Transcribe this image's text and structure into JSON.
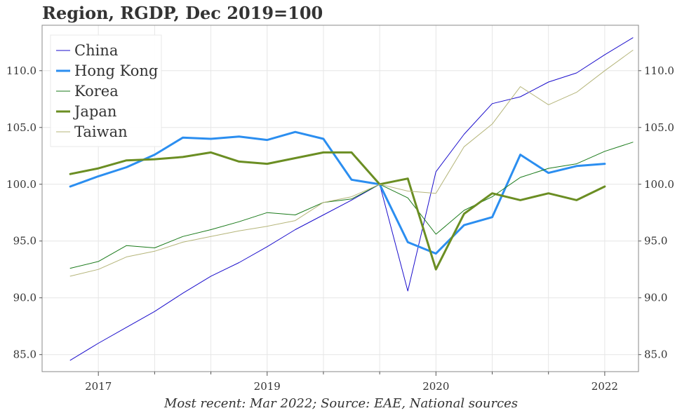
{
  "chart_data": {
    "type": "line",
    "title": "Region, RGDP, Dec 2019=100",
    "caption": "Most recent: Mar 2022; Source: EAE, National sources",
    "xlabel": "",
    "ylabel": "",
    "x_tick_labels": [
      "2017",
      "2019",
      "2020",
      "2022"
    ],
    "y_ticks": [
      85.0,
      90.0,
      95.0,
      100.0,
      105.0,
      110.0
    ],
    "y_tick_labels": [
      "85.0",
      "90.0",
      "95.0",
      "100.0",
      "105.0",
      "110.0"
    ],
    "ylim": [
      83.5,
      114
    ],
    "x_range": [
      -1.0,
      20.2
    ],
    "grid": true,
    "legend_position": "top-left",
    "series": [
      {
        "name": "China",
        "color": "#1a0dcc",
        "width": 1,
        "values": [
          84.5,
          86.0,
          87.4,
          88.8,
          90.4,
          91.9,
          93.1,
          94.5,
          96.0,
          97.3,
          98.6,
          100.0,
          90.6,
          101.1,
          104.4,
          107.1,
          107.7,
          109.0,
          109.8,
          111.4,
          112.9
        ]
      },
      {
        "name": "Hong Kong",
        "color": "#2b8ef0",
        "width": 3,
        "values": [
          99.8,
          100.7,
          101.5,
          102.6,
          104.1,
          104.0,
          104.2,
          103.9,
          104.6,
          104.0,
          100.4,
          100.0,
          94.9,
          93.9,
          96.4,
          97.1,
          102.6,
          101.0,
          101.6,
          101.8,
          null
        ]
      },
      {
        "name": "Korea",
        "color": "#1a7a1a",
        "width": 1,
        "values": [
          92.6,
          93.2,
          94.6,
          94.4,
          95.4,
          96.0,
          96.7,
          97.5,
          97.3,
          98.4,
          98.7,
          100.0,
          98.8,
          95.6,
          97.7,
          98.9,
          100.6,
          101.4,
          101.8,
          102.9,
          103.7
        ]
      },
      {
        "name": "Japan",
        "color": "#6b8e23",
        "width": 3,
        "values": [
          100.9,
          101.4,
          102.1,
          102.2,
          102.4,
          102.8,
          102.0,
          101.8,
          102.3,
          102.8,
          102.8,
          100.0,
          100.5,
          92.5,
          97.4,
          99.2,
          98.6,
          99.2,
          98.6,
          99.8,
          null
        ]
      },
      {
        "name": "Taiwan",
        "color": "#b5b57a",
        "width": 1,
        "values": [
          91.9,
          92.5,
          93.6,
          94.1,
          94.9,
          95.4,
          95.9,
          96.3,
          96.8,
          98.4,
          98.9,
          100.0,
          99.4,
          99.2,
          103.3,
          105.3,
          108.6,
          107.0,
          108.1,
          110.0,
          111.8
        ]
      }
    ]
  }
}
